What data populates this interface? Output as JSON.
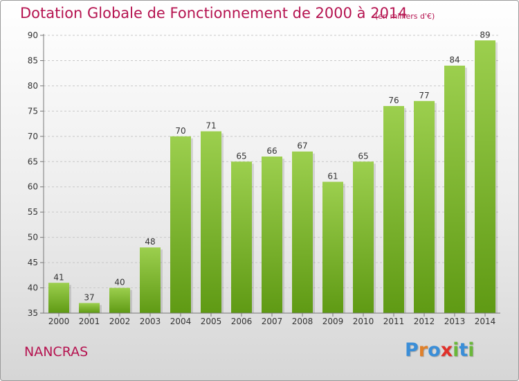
{
  "title": "Dotation Globale de Fonctionnement de 2000 à 2014",
  "subtitle": "(en milliers d'€)",
  "place": "NANCRAS",
  "logo": {
    "letters": [
      "P",
      "r",
      "o",
      "x",
      "i",
      "t",
      "i"
    ],
    "colors": [
      "#3a8ed8",
      "#e0802a",
      "#3a8ed8",
      "#e0302a",
      "#6ab83a",
      "#3a8ed8",
      "#6ab83a"
    ]
  },
  "colors": {
    "bar_top": "#9ccf4e",
    "bar_bottom": "#5f9a14",
    "title": "#b5124f",
    "grid": "#c8c8c8"
  },
  "chart_data": {
    "type": "bar",
    "categories": [
      "2000",
      "2001",
      "2002",
      "2003",
      "2004",
      "2005",
      "2006",
      "2007",
      "2008",
      "2009",
      "2010",
      "2011",
      "2012",
      "2013",
      "2014"
    ],
    "values": [
      41,
      37,
      40,
      48,
      70,
      71,
      65,
      66,
      67,
      61,
      65,
      76,
      77,
      84,
      89
    ],
    "ylim": [
      35,
      90
    ],
    "yticks": [
      35,
      40,
      45,
      50,
      55,
      60,
      65,
      70,
      75,
      80,
      85,
      90
    ],
    "grid": true,
    "data_labels": true
  }
}
